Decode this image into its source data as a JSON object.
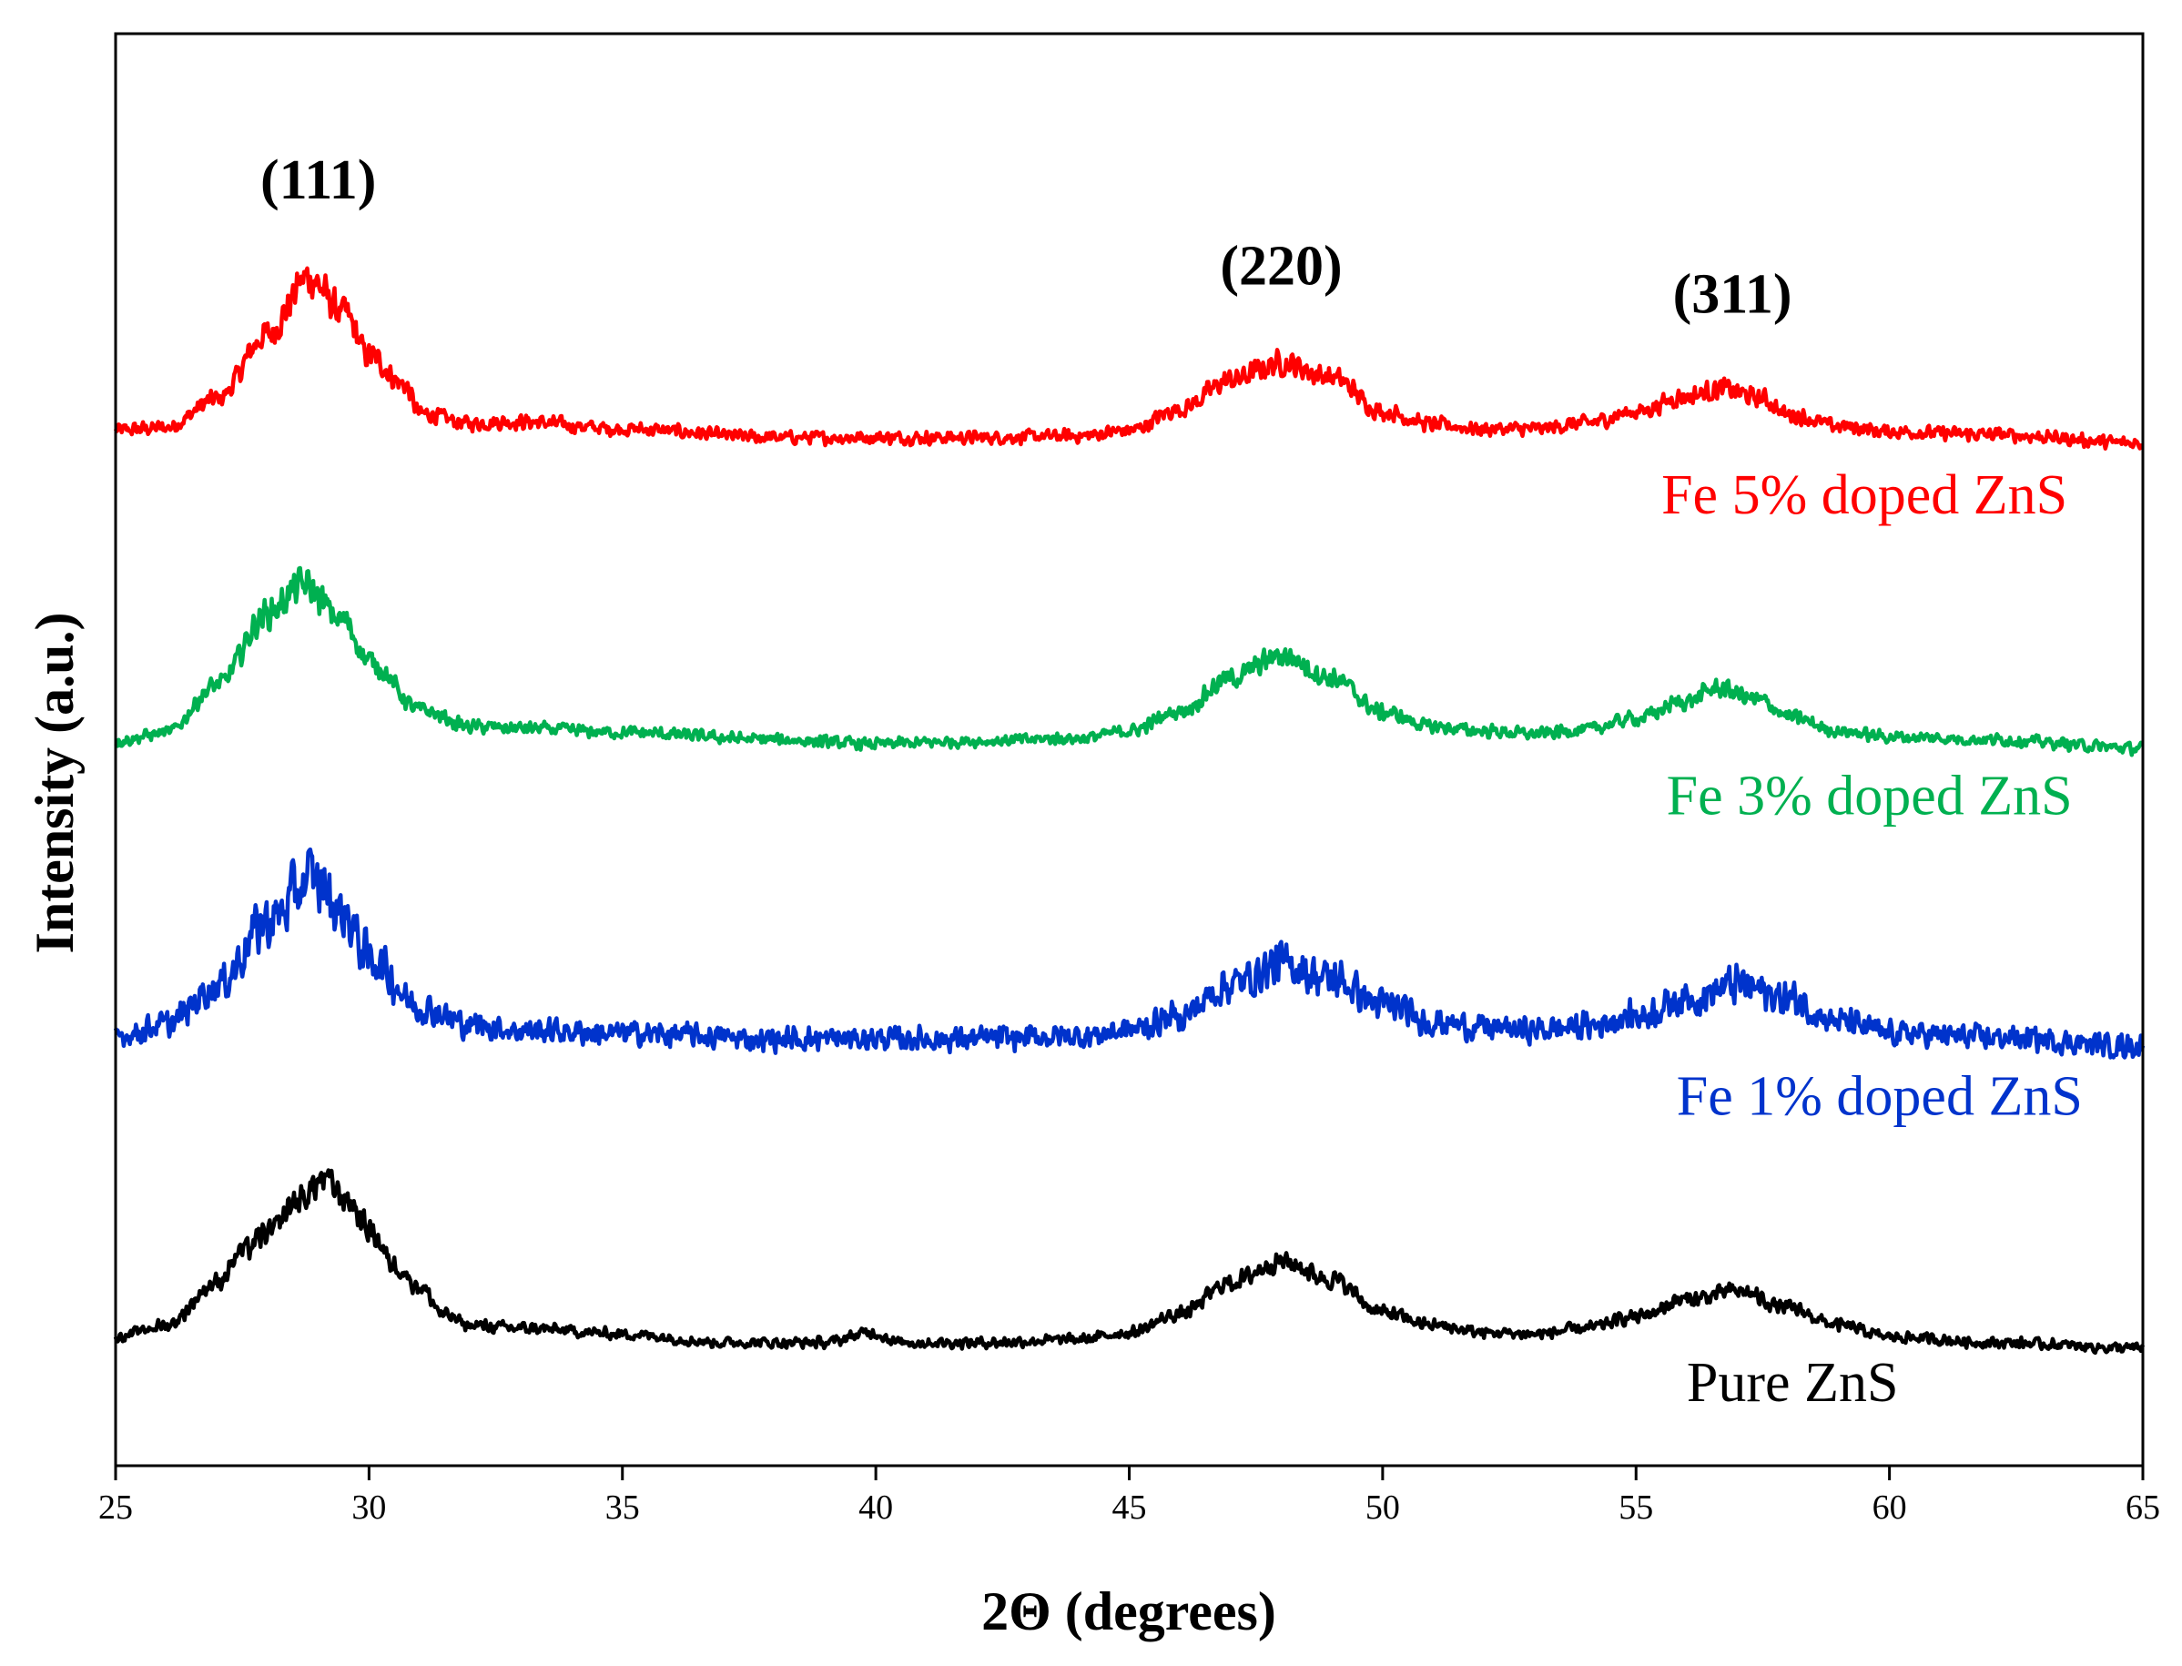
{
  "chart_data": {
    "type": "line",
    "title": "",
    "xlabel": "2Θ (degrees)",
    "ylabel": "Intensity (a.u.)",
    "xlim": [
      25,
      65
    ],
    "ylim": [
      0,
      100
    ],
    "xticks": [
      25,
      30,
      35,
      40,
      45,
      50,
      55,
      60,
      65
    ],
    "y_ticks_shown": false,
    "grid": false,
    "peak_annotations": [
      {
        "label": "(111)",
        "x": 29.0,
        "y": 88.5
      },
      {
        "label": "(220)",
        "x": 48.0,
        "y": 82.5
      },
      {
        "label": "(311)",
        "x": 56.9,
        "y": 80.5
      }
    ],
    "series": [
      {
        "name": "Fe 5% doped ZnS",
        "color": "#ff0000",
        "label_position": {
          "x": 55.5,
          "y": 66.5
        },
        "baseline": 72.0,
        "noise": 0.55,
        "points": [
          [
            25,
            72.3
          ],
          [
            26,
            72.5
          ],
          [
            27,
            74.5
          ],
          [
            28,
            79.0
          ],
          [
            28.8,
            83.0
          ],
          [
            29.5,
            80.5
          ],
          [
            30,
            77.5
          ],
          [
            30.7,
            75.5
          ],
          [
            31,
            73.5
          ],
          [
            32,
            72.8
          ],
          [
            33,
            72.9
          ],
          [
            35,
            72.4
          ],
          [
            38,
            71.8
          ],
          [
            42,
            71.8
          ],
          [
            44,
            71.9
          ],
          [
            45,
            72.3
          ],
          [
            46,
            73.8
          ],
          [
            47,
            75.8
          ],
          [
            48,
            77.0
          ],
          [
            49,
            76.0
          ],
          [
            50,
            73.6
          ],
          [
            51,
            72.7
          ],
          [
            52,
            72.4
          ],
          [
            53,
            72.4
          ],
          [
            54,
            72.8
          ],
          [
            55,
            73.6
          ],
          [
            56,
            74.7
          ],
          [
            56.7,
            75.2
          ],
          [
            57.5,
            74.5
          ],
          [
            58,
            73.4
          ],
          [
            59,
            72.6
          ],
          [
            60,
            72.2
          ],
          [
            62,
            72.0
          ],
          [
            65,
            71.4
          ]
        ]
      },
      {
        "name": "Fe 3% doped ZnS",
        "color": "#00b050",
        "label_position": {
          "x": 55.6,
          "y": 45.5
        },
        "baseline": 51.0,
        "noise": 0.5,
        "points": [
          [
            25,
            50.6
          ],
          [
            26,
            51.2
          ],
          [
            27,
            54.5
          ],
          [
            28,
            59.5
          ],
          [
            28.7,
            61.5
          ],
          [
            29.5,
            59.0
          ],
          [
            30,
            56.2
          ],
          [
            31,
            52.8
          ],
          [
            32,
            51.6
          ],
          [
            33,
            51.5
          ],
          [
            35,
            51.2
          ],
          [
            38,
            50.7
          ],
          [
            40,
            50.4
          ],
          [
            42,
            50.6
          ],
          [
            44,
            50.8
          ],
          [
            45,
            51.3
          ],
          [
            46,
            52.7
          ],
          [
            47,
            55.0
          ],
          [
            48,
            56.6
          ],
          [
            49,
            55.0
          ],
          [
            50,
            52.6
          ],
          [
            51,
            51.6
          ],
          [
            52,
            51.3
          ],
          [
            53,
            51.1
          ],
          [
            54,
            51.4
          ],
          [
            55,
            52.2
          ],
          [
            56,
            53.4
          ],
          [
            56.6,
            54.3
          ],
          [
            57.5,
            53.4
          ],
          [
            58,
            52.3
          ],
          [
            59,
            51.3
          ],
          [
            60,
            50.9
          ],
          [
            62,
            50.7
          ],
          [
            65,
            50.1
          ]
        ]
      },
      {
        "name": "Fe 1% doped ZnS",
        "color": "#0033cc",
        "label_position": {
          "x": 55.8,
          "y": 24.5
        },
        "baseline": 30.0,
        "noise": 1.0,
        "points": [
          [
            25,
            30.0
          ],
          [
            26,
            30.8
          ],
          [
            27,
            33.5
          ],
          [
            28,
            38.0
          ],
          [
            28.9,
            41.0
          ],
          [
            29.5,
            38.5
          ],
          [
            30,
            35.5
          ],
          [
            31,
            32.0
          ],
          [
            32,
            30.8
          ],
          [
            33,
            30.4
          ],
          [
            35,
            30.2
          ],
          [
            38,
            29.8
          ],
          [
            40,
            29.8
          ],
          [
            42,
            29.8
          ],
          [
            44,
            30.0
          ],
          [
            45,
            30.4
          ],
          [
            46,
            31.4
          ],
          [
            47,
            33.6
          ],
          [
            48,
            35.0
          ],
          [
            49,
            34.0
          ],
          [
            50,
            32.2
          ],
          [
            51,
            31.0
          ],
          [
            52,
            30.6
          ],
          [
            53,
            30.4
          ],
          [
            54,
            30.7
          ],
          [
            55,
            31.4
          ],
          [
            56,
            32.6
          ],
          [
            57,
            33.6
          ],
          [
            58,
            32.6
          ],
          [
            59,
            31.0
          ],
          [
            60,
            30.2
          ],
          [
            62,
            29.9
          ],
          [
            65,
            29.3
          ]
        ]
      },
      {
        "name": "Pure ZnS",
        "color": "#000000",
        "label_position": {
          "x": 56.0,
          "y": 4.5
        },
        "baseline": 9.0,
        "noise": 0.45,
        "points": [
          [
            25,
            9.0
          ],
          [
            26,
            9.8
          ],
          [
            27,
            12.8
          ],
          [
            27.5,
            15.0
          ],
          [
            28,
            16.2
          ],
          [
            28.6,
            18.5
          ],
          [
            29.1,
            20.0
          ],
          [
            29.6,
            18.5
          ],
          [
            30,
            16.5
          ],
          [
            30.5,
            14.0
          ],
          [
            31,
            12.5
          ],
          [
            31.5,
            10.5
          ],
          [
            32,
            9.8
          ],
          [
            33,
            9.6
          ],
          [
            35,
            9.2
          ],
          [
            37,
            8.6
          ],
          [
            39,
            8.6
          ],
          [
            39.9,
            9.3
          ],
          [
            40.5,
            8.6
          ],
          [
            42,
            8.6
          ],
          [
            44,
            8.8
          ],
          [
            45,
            9.3
          ],
          [
            46,
            10.6
          ],
          [
            47,
            12.8
          ],
          [
            48,
            14.3
          ],
          [
            49,
            13.0
          ],
          [
            50,
            10.7
          ],
          [
            51,
            9.8
          ],
          [
            52,
            9.3
          ],
          [
            53,
            9.2
          ],
          [
            54,
            9.6
          ],
          [
            55,
            10.4
          ],
          [
            56,
            11.6
          ],
          [
            57,
            12.2
          ],
          [
            58,
            11.0
          ],
          [
            59,
            9.8
          ],
          [
            60,
            9.0
          ],
          [
            62,
            8.6
          ],
          [
            65,
            8.2
          ]
        ]
      }
    ]
  }
}
